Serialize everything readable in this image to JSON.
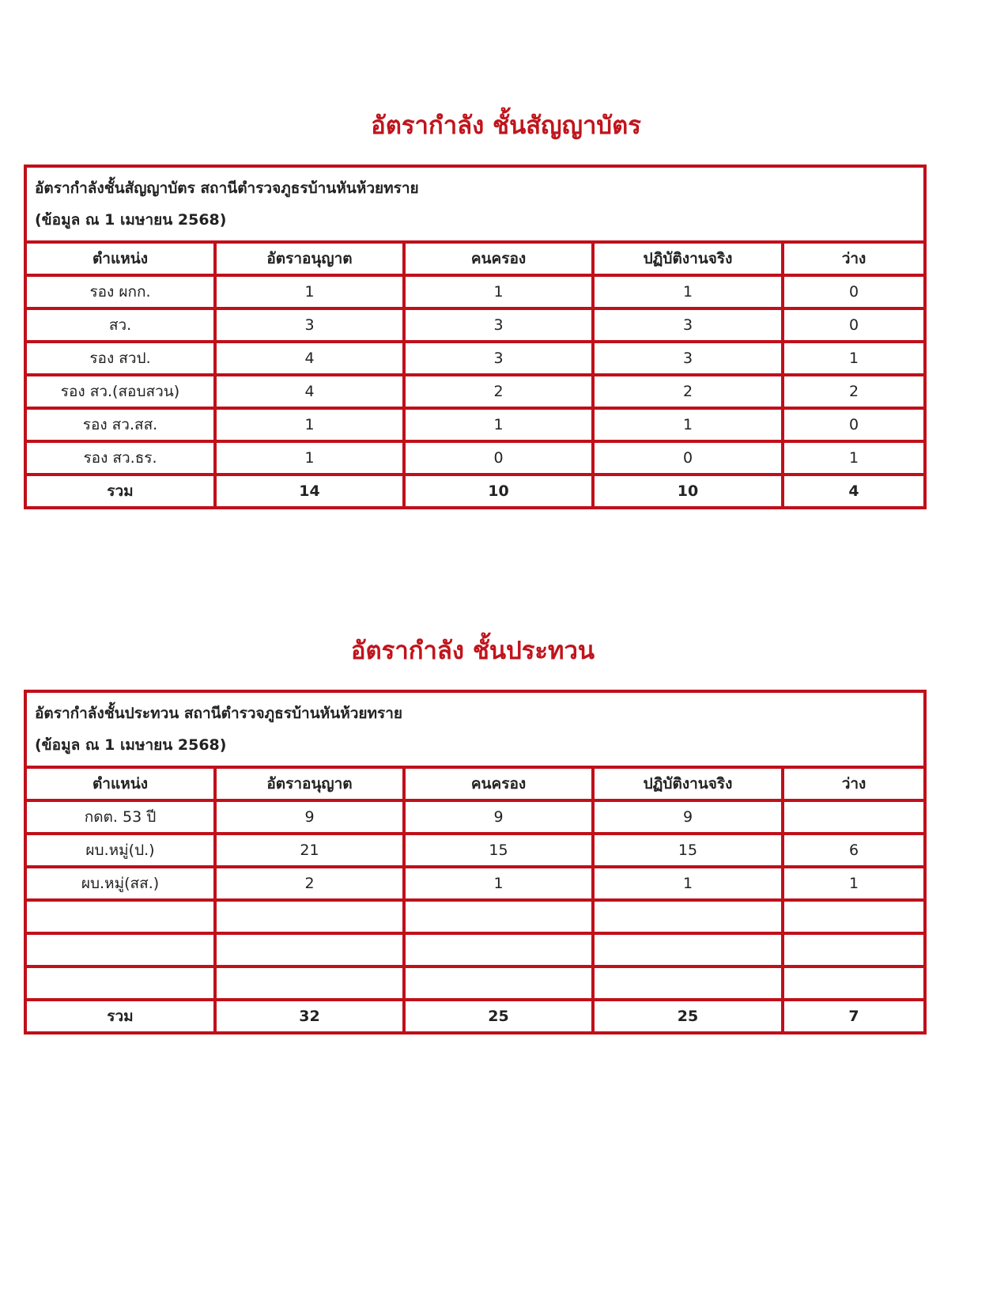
{
  "sections": [
    {
      "title": "อัตรากำลัง ชั้นสัญญาบัตร",
      "caption_line1": "อัตรากำลังชั้นสัญญาบัตร สถานีตำรวจภูธรบ้านหันห้วยทราย",
      "caption_line2": "(ข้อมูล ณ 1 เมษายน 2568)",
      "headers": [
        "ตำแหน่ง",
        "อัตราอนุญาต",
        "คนครอง",
        "ปฏิบัติงานจริง",
        "ว่าง"
      ],
      "rows": [
        [
          "รอง ผกก.",
          "1",
          "1",
          "1",
          "0"
        ],
        [
          "สว.",
          "3",
          "3",
          "3",
          "0"
        ],
        [
          "รอง สวป.",
          "4",
          "3",
          "3",
          "1"
        ],
        [
          "รอง สว.(สอบสวน)",
          "4",
          "2",
          "2",
          "2"
        ],
        [
          "รอง สว.สส.",
          "1",
          "1",
          "1",
          "0"
        ],
        [
          "รอง สว.ธร.",
          "1",
          "0",
          "0",
          "1"
        ]
      ],
      "total": [
        "รวม",
        "14",
        "10",
        "10",
        "4"
      ]
    },
    {
      "title": "อัตรากำลัง ชั้นประทวน",
      "caption_line1": "อัตรากำลังชั้นประทวน สถานีตำรวจภูธรบ้านหันห้วยทราย",
      "caption_line2": "(ข้อมูล ณ 1 เมษายน 2568)",
      "headers": [
        "ตำแหน่ง",
        "อัตราอนุญาต",
        "คนครอง",
        "ปฏิบัติงานจริง",
        "ว่าง"
      ],
      "rows": [
        [
          "กดต. 53 ปี",
          "9",
          "9",
          "9",
          ""
        ],
        [
          "ผบ.หมู่(ป.)",
          "21",
          "15",
          "15",
          "6"
        ],
        [
          "ผบ.หมู่(สส.)",
          "2",
          "1",
          "1",
          "1"
        ],
        [
          "",
          "",
          "",
          "",
          ""
        ],
        [
          "",
          "",
          "",
          "",
          ""
        ],
        [
          "",
          "",
          "",
          "",
          ""
        ]
      ],
      "total": [
        "รวม",
        "32",
        "25",
        "25",
        "7"
      ]
    }
  ],
  "colors": {
    "accent": "#c0141c"
  }
}
